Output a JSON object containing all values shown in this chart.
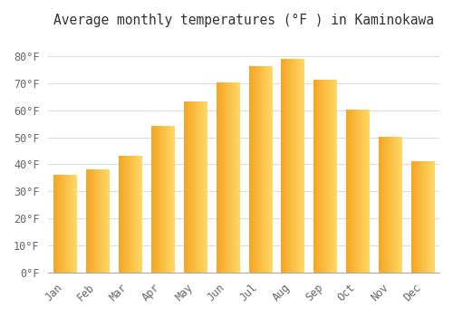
{
  "title": "Average monthly temperatures (°F ) in Kaminokawa",
  "months": [
    "Jan",
    "Feb",
    "Mar",
    "Apr",
    "May",
    "Jun",
    "Jul",
    "Aug",
    "Sep",
    "Oct",
    "Nov",
    "Dec"
  ],
  "values": [
    36,
    38,
    43,
    54,
    63,
    70,
    76,
    79,
    71,
    60,
    50,
    41
  ],
  "bar_color_left": "#F5A623",
  "bar_color_right": "#FFD966",
  "ylim": [
    0,
    88
  ],
  "yticks": [
    0,
    10,
    20,
    30,
    40,
    50,
    60,
    70,
    80
  ],
  "ytick_labels": [
    "0°F",
    "10°F",
    "20°F",
    "30°F",
    "40°F",
    "50°F",
    "60°F",
    "70°F",
    "80°F"
  ],
  "background_color": "#FFFFFF",
  "grid_color": "#DDDDDD",
  "title_fontsize": 10.5,
  "tick_fontsize": 8.5,
  "tick_color": "#666666"
}
